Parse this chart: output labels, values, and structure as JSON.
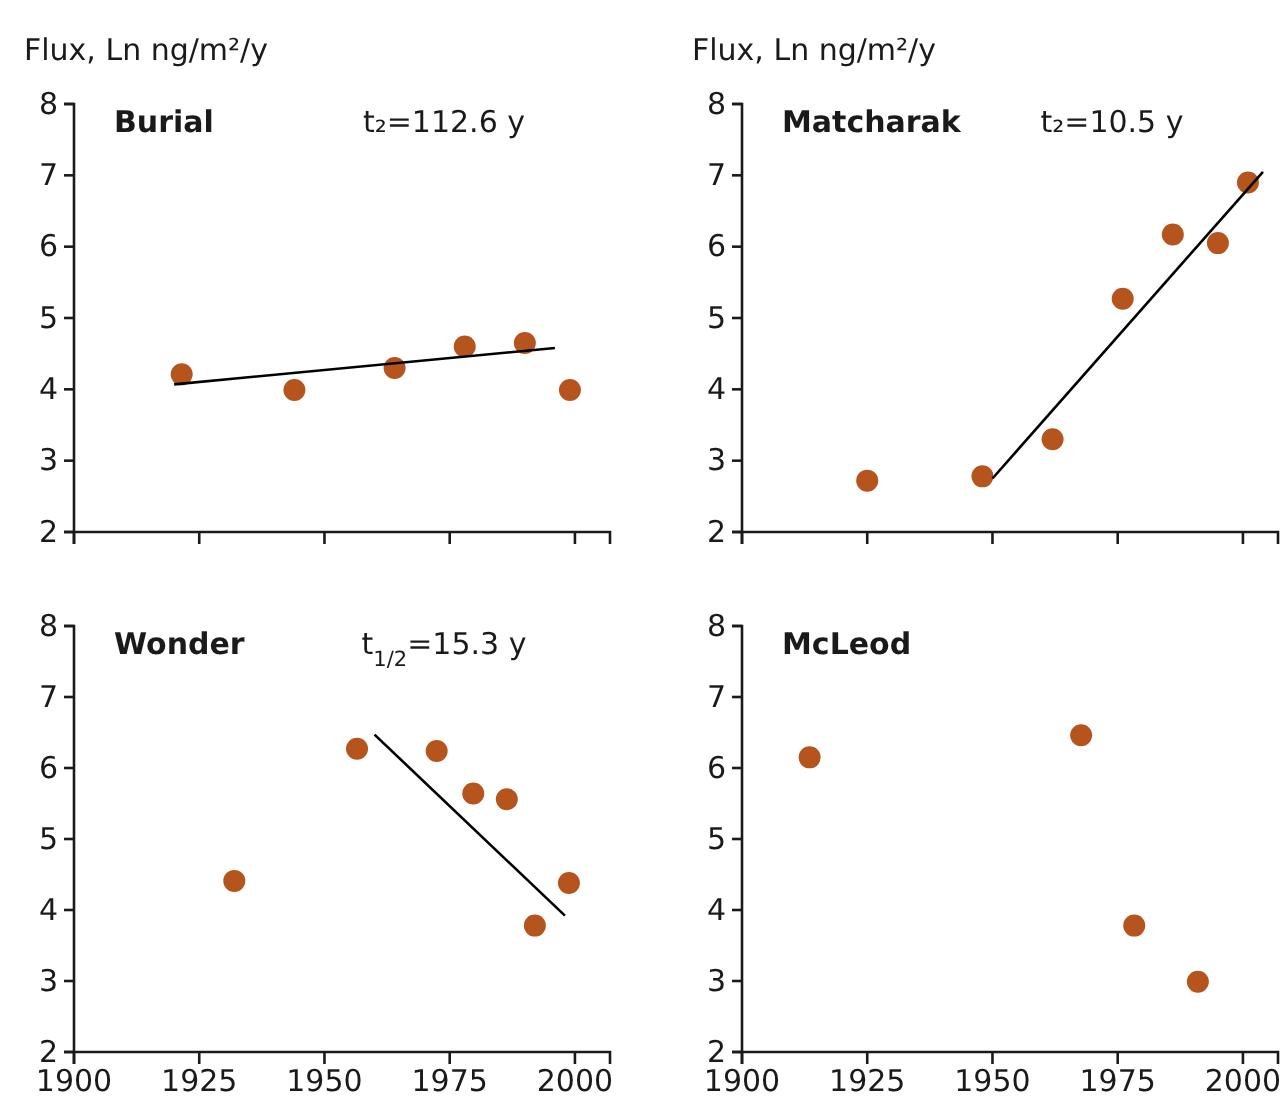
{
  "chart_data": [
    {
      "type": "scatter",
      "title": "Burial",
      "ylabel": "Flux, Ln ng/m²/y",
      "annotations": [
        "t₂=112.6 y"
      ],
      "grid": false,
      "tick_labels": "y",
      "xlim": [
        1900,
        2007
      ],
      "ylim": [
        2,
        8
      ],
      "xticks": [
        1900,
        1925,
        1950,
        1975,
        2000
      ],
      "yticks": [
        2,
        3,
        4,
        5,
        6,
        7,
        8
      ],
      "series": [
        {
          "color": "#b5541c",
          "marker": "circle",
          "x": [
            1921.5,
            1944,
            1964,
            1978,
            1990,
            1999
          ],
          "values": [
            4.21,
            3.99,
            4.3,
            4.6,
            4.65,
            3.99
          ]
        },
        {
          "type": "line",
          "marker": "none",
          "color": "#000000",
          "x": [
            1920,
            1996
          ],
          "values": [
            4.07,
            4.58
          ]
        }
      ]
    },
    {
      "type": "scatter",
      "title": "Matcharak",
      "ylabel": "Flux, Ln ng/m²/y",
      "annotations": [
        "t₂=10.5 y"
      ],
      "grid": false,
      "tick_labels": "y",
      "xlim": [
        1900,
        2007
      ],
      "ylim": [
        2,
        8
      ],
      "xticks": [
        1900,
        1925,
        1950,
        1975,
        2000
      ],
      "yticks": [
        2,
        3,
        4,
        5,
        6,
        7,
        8
      ],
      "series": [
        {
          "color": "#b5541c",
          "marker": "circle",
          "x": [
            1925,
            1948,
            1962,
            1976,
            1986,
            1995,
            2001
          ],
          "values": [
            2.72,
            2.78,
            3.3,
            5.27,
            6.17,
            6.05,
            6.9
          ]
        },
        {
          "type": "line",
          "marker": "none",
          "color": "#000000",
          "x": [
            1950,
            2004
          ],
          "values": [
            2.75,
            7.05
          ]
        }
      ]
    },
    {
      "type": "scatter",
      "title": "Wonder",
      "annotations": [
        "t$_{1/2}$=15.3 y"
      ],
      "grid": false,
      "xlim": [
        1900,
        2007
      ],
      "ylim": [
        2,
        8
      ],
      "xticks": [
        1900,
        1925,
        1950,
        1975,
        2000
      ],
      "yticks": [
        2,
        3,
        4,
        5,
        6,
        7,
        8
      ],
      "series": [
        {
          "color": "#b5541c",
          "marker": "circle",
          "x": [
            1932,
            1956.5,
            1972.4,
            1979.7,
            1986.4,
            1992,
            1998.8
          ],
          "values": [
            4.41,
            6.27,
            6.24,
            5.64,
            5.56,
            3.78,
            4.38
          ]
        },
        {
          "type": "line",
          "marker": "none",
          "color": "#000000",
          "x": [
            1960,
            1998
          ],
          "values": [
            6.47,
            3.92
          ]
        }
      ]
    },
    {
      "type": "scatter",
      "title": "McLeod",
      "marker": "circle",
      "grid": false,
      "xlim": [
        1900,
        2007
      ],
      "ylim": [
        2,
        8
      ],
      "xticks": [
        1900,
        1925,
        1950,
        1975,
        2000
      ],
      "yticks": [
        2,
        3,
        4,
        5,
        6,
        7,
        8
      ],
      "series": [
        {
          "color": "#b5541c",
          "x": [
            1913.5,
            1967.7,
            1978.3,
            1991
          ],
          "values": [
            6.15,
            6.46,
            3.78,
            2.99
          ]
        }
      ]
    }
  ]
}
